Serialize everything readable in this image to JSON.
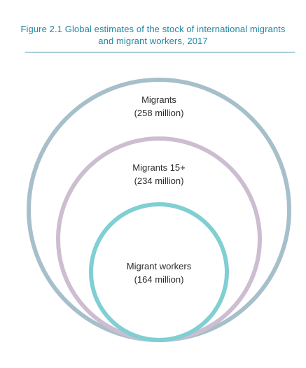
{
  "figure": {
    "title_line1": "Figure 2.1 Global estimates of the stock of international migrants",
    "title_line2": "and migrant workers, 2017"
  },
  "diagram": {
    "colors": {
      "title": "#1f86a3",
      "rule": "#3f93ad",
      "migrants_circle": "#a7bfcb",
      "migrants15_circle": "#cdbdd0",
      "workers_circle": "#7fcfd3",
      "label_text": "#2b2b2b"
    },
    "circles": [
      {
        "name": "Migrants",
        "value": "(258 million)"
      },
      {
        "name": "Migrants 15+",
        "value": "(234 million)"
      },
      {
        "name": "Migrant workers",
        "value": "(164 million)"
      }
    ]
  }
}
